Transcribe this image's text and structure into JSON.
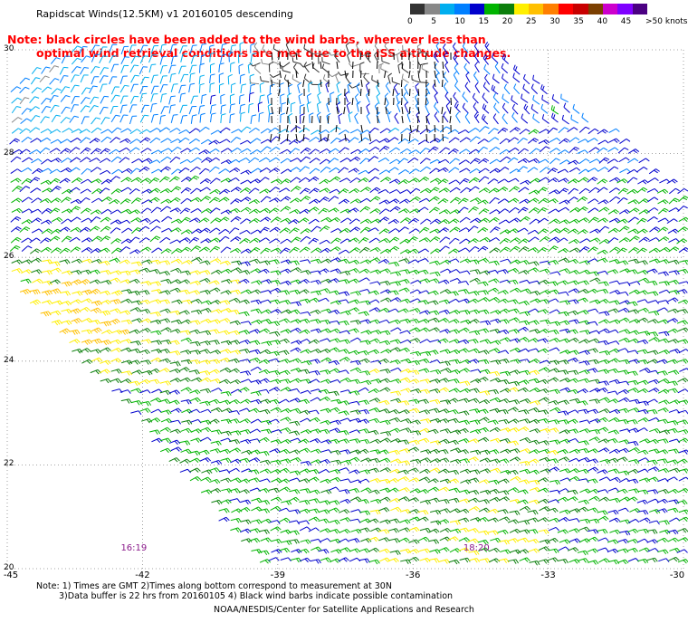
{
  "title": "Rapidscat Winds(12.5KM) v1 20160105 descending",
  "legend": {
    "colors": [
      "#333333",
      "#888888",
      "#00aeef",
      "#007fff",
      "#0000cd",
      "#00b400",
      "#0c7f0c",
      "#ffef00",
      "#ffc000",
      "#ff7f00",
      "#ff0000",
      "#c80000",
      "#7b3f00",
      "#cc00cc",
      "#7f00ff",
      "#4b0082"
    ],
    "labels": [
      "0",
      "5",
      "10",
      "15",
      "20",
      "25",
      "30",
      "35",
      "40",
      "45",
      ">50 knots"
    ],
    "label_ticks": [
      0,
      5,
      10,
      15,
      20,
      25,
      30,
      35,
      40,
      45,
      50
    ],
    "max": 50
  },
  "note": {
    "line1": "Note: black circles have been added to the wind barbs, wherever less than",
    "line2": "optimal wind retrieval conditions are met due to the ISS altitude changes."
  },
  "map": {
    "lat_range": [
      20,
      30
    ],
    "lon_range": [
      -45,
      -30
    ],
    "lat_labels": [
      "30",
      "28",
      "26",
      "24",
      "22",
      "20"
    ],
    "lat_values": [
      30,
      28,
      26,
      24,
      22,
      20
    ],
    "lon_labels": [
      "-45",
      "-42",
      "-39",
      "-36",
      "-33",
      "-30"
    ],
    "lon_values": [
      -45,
      -42,
      -39,
      -36,
      -33,
      -30
    ],
    "grid": true
  },
  "times": [
    {
      "label": "16:19",
      "lon": -42.2
    },
    {
      "label": "18:20",
      "lon": -34.6
    }
  ],
  "footnote": {
    "line1": "Note: 1) Times are GMT 2)Times along bottom correspond to measurement at 30N",
    "line2": "3)Data buffer is 22 hrs from 20160105 4) Black wind barbs indicate possible contamination"
  },
  "credit": "NOAA/NESDIS/Center for Satellite Applications and Research"
}
